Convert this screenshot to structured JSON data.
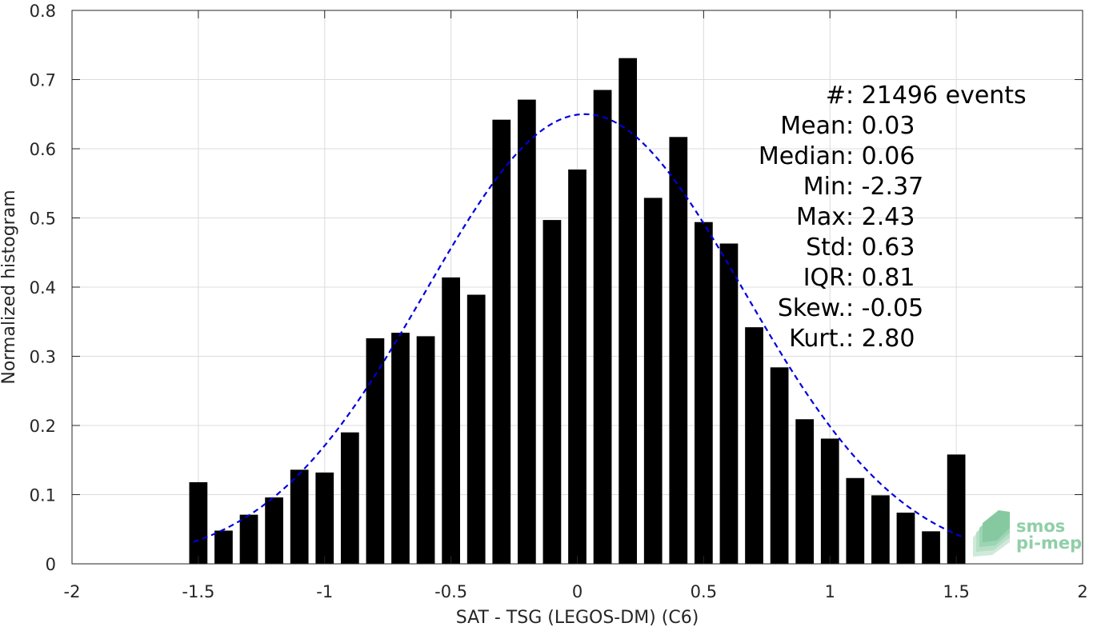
{
  "chart_data": {
    "type": "bar",
    "xlabel": "SAT - TSG (LEGOS-DM) (C6)",
    "ylabel": "Normalized histogram",
    "xlim": [
      -2,
      2
    ],
    "ylim": [
      0,
      0.8
    ],
    "xticks": [
      -2,
      -1.5,
      -1,
      -0.5,
      0,
      0.5,
      1,
      1.5,
      2
    ],
    "xtick_labels": [
      "-2",
      "-1.5",
      "-1",
      "-0.5",
      "0",
      "0.5",
      "1",
      "1.5",
      "2"
    ],
    "yticks": [
      0,
      0.1,
      0.2,
      0.3,
      0.4,
      0.5,
      0.6,
      0.7,
      0.8
    ],
    "ytick_labels": [
      "0",
      "0.1",
      "0.2",
      "0.3",
      "0.4",
      "0.5",
      "0.6",
      "0.7",
      "0.8"
    ],
    "grid": true,
    "bar_color": "#000000",
    "bin_width": 0.1,
    "bars": {
      "x": [
        -1.5,
        -1.4,
        -1.3,
        -1.2,
        -1.1,
        -1.0,
        -0.9,
        -0.8,
        -0.7,
        -0.6,
        -0.5,
        -0.4,
        -0.3,
        -0.2,
        -0.1,
        0.0,
        0.1,
        0.2,
        0.3,
        0.4,
        0.5,
        0.6,
        0.7,
        0.8,
        0.9,
        1.0,
        1.1,
        1.2,
        1.3,
        1.4,
        1.5
      ],
      "values": [
        0.118,
        0.048,
        0.071,
        0.096,
        0.136,
        0.132,
        0.19,
        0.326,
        0.334,
        0.329,
        0.414,
        0.389,
        0.642,
        0.671,
        0.497,
        0.57,
        0.685,
        0.731,
        0.529,
        0.617,
        0.494,
        0.463,
        0.342,
        0.284,
        0.209,
        0.181,
        0.124,
        0.099,
        0.074,
        0.047,
        0.158
      ]
    },
    "fit": {
      "type": "gaussian",
      "color": "#0000dd",
      "style": "dashed",
      "mean": 0.03,
      "std": 0.63,
      "peak": 0.65,
      "x_range": [
        -1.52,
        1.52
      ]
    },
    "annotation_lines": [
      {
        "label": "#  ",
        "value": ": 21496 events"
      },
      {
        "label": "Mean ",
        "value": ": 0.03"
      },
      {
        "label": "Median ",
        "value": ": 0.06"
      },
      {
        "label": "Min ",
        "value": ": -2.37"
      },
      {
        "label": "Max ",
        "value": ": 2.43"
      },
      {
        "label": "Std ",
        "value": ": 0.63"
      },
      {
        "label": "IQR ",
        "value": ": 0.81"
      },
      {
        "label": "Skew. ",
        "value": ": -0.05"
      },
      {
        "label": "Kurt. ",
        "value": ": 2.80"
      }
    ]
  },
  "logo": {
    "line1": "smos",
    "line2": "pi-mep",
    "color": "#8fcfa8"
  }
}
